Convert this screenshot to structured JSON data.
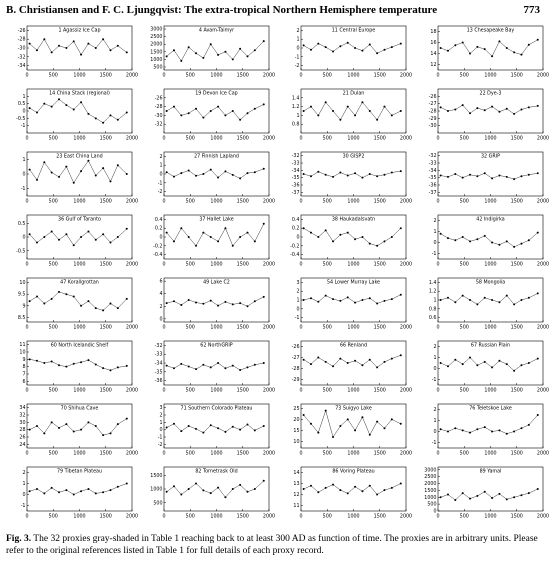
{
  "header": {
    "running_title": "B. Christiansen and F. C. Ljungqvist: The extra-tropical Northern Hemisphere temperature",
    "page_number": "773"
  },
  "figure": {
    "xlim": [
      0,
      2000
    ],
    "xticks": [
      0,
      500,
      1000,
      1500,
      2000
    ],
    "x": [
      50,
      190,
      330,
      470,
      610,
      750,
      890,
      1030,
      1170,
      1310,
      1450,
      1590,
      1730,
      1900
    ],
    "panels": [
      {
        "title": "1 Agassiz Ice Cap",
        "ylim": [
          -35,
          -25
        ],
        "yticks": [
          -26,
          -28,
          -30,
          -32,
          -34
        ],
        "values": [
          -29,
          -30.5,
          -28,
          -31,
          -29.5,
          -30,
          -28.5,
          -31.5,
          -29,
          -30,
          -28,
          -30.5,
          -29.5,
          -31
        ]
      },
      {
        "title": "4 Avam-Taimyr",
        "ylim": [
          300,
          3200
        ],
        "yticks": [
          500,
          1000,
          1500,
          2000,
          2500,
          3000
        ],
        "values": [
          1200,
          1600,
          900,
          1800,
          1400,
          1100,
          2000,
          1300,
          1500,
          1000,
          1700,
          1200,
          1600,
          2200
        ]
      },
      {
        "title": "11 Central Europe",
        "ylim": [
          -2.5,
          2.5
        ],
        "yticks": [
          -2,
          -1,
          0,
          1,
          2
        ],
        "values": [
          0.3,
          -0.2,
          0.5,
          0.1,
          -0.4,
          0.2,
          0.6,
          0,
          -0.3,
          0.4,
          -0.6,
          -0.2,
          0.1,
          0.5
        ]
      },
      {
        "title": "13 Chesapeake Bay",
        "ylim": [
          11,
          19
        ],
        "yticks": [
          12,
          14,
          16,
          18
        ],
        "values": [
          15,
          14.5,
          15.5,
          16,
          14,
          15.2,
          14.8,
          13.5,
          16.2,
          15,
          14.2,
          13.8,
          15.6,
          16.5
        ]
      },
      {
        "title": "14 China Stack (regional)",
        "ylim": [
          -1.5,
          1.5
        ],
        "yticks": [
          -1,
          -0.5,
          0,
          0.5,
          1
        ],
        "values": [
          0.2,
          -0.1,
          0.5,
          0.3,
          0.8,
          0.4,
          0.1,
          0.6,
          -0.2,
          -0.5,
          -0.8,
          -0.3,
          -0.6,
          -0.1
        ]
      },
      {
        "title": "19 Devon Ice Cap",
        "ylim": [
          -34,
          -24
        ],
        "yticks": [
          -26,
          -28,
          -30,
          -32
        ],
        "values": [
          -29,
          -28,
          -30,
          -29.5,
          -28.5,
          -30.5,
          -29,
          -28,
          -30,
          -29,
          -31,
          -29.5,
          -28.5,
          -27.5
        ]
      },
      {
        "title": "21 Dulan",
        "ylim": [
          0.6,
          1.6
        ],
        "yticks": [
          0.8,
          1,
          1.2,
          1.4
        ],
        "values": [
          1.1,
          1.2,
          1,
          1.3,
          1.1,
          0.9,
          1.2,
          1,
          1.3,
          1.1,
          0.9,
          1.2,
          1,
          1.1
        ]
      },
      {
        "title": "22 Dye-3",
        "ylim": [
          -31,
          -25
        ],
        "yticks": [
          -26,
          -27,
          -28,
          -29,
          -30
        ],
        "values": [
          -27.5,
          -28,
          -27.8,
          -27.2,
          -28.3,
          -27.6,
          -27.9,
          -27.4,
          -28.1,
          -27.7,
          -28.4,
          -27.8,
          -27.5,
          -27.3
        ]
      },
      {
        "title": "23 East China Land",
        "ylim": [
          -1.5,
          1.5
        ],
        "yticks": [
          -1,
          0,
          1
        ],
        "values": [
          0.3,
          -0.4,
          0.8,
          0.1,
          -0.2,
          0.5,
          -0.6,
          0.2,
          0.9,
          -0.1,
          0.4,
          -0.5,
          0.6,
          0
        ]
      },
      {
        "title": "27 Finnish Lapland",
        "ylim": [
          -2.5,
          2.5
        ],
        "yticks": [
          -2,
          -1,
          0,
          1,
          2
        ],
        "values": [
          0.2,
          -0.3,
          0.1,
          0.4,
          -0.2,
          0,
          0.5,
          -0.4,
          0.3,
          -0.1,
          -0.5,
          0.1,
          0.2,
          0.6
        ]
      },
      {
        "title": "30 GISP2",
        "ylim": [
          -37.5,
          -31.5
        ],
        "yticks": [
          -32,
          -33,
          -34,
          -35,
          -36,
          -37
        ],
        "values": [
          -34.5,
          -34.8,
          -34.2,
          -34.6,
          -34.9,
          -34.3,
          -34.7,
          -34.4,
          -35,
          -34.5,
          -34.8,
          -34.6,
          -34.3,
          -34.1
        ]
      },
      {
        "title": "32 GRIP",
        "ylim": [
          -37.5,
          -31.5
        ],
        "yticks": [
          -32,
          -33,
          -34,
          -35,
          -36,
          -37
        ],
        "values": [
          -34.7,
          -34.9,
          -34.5,
          -35,
          -34.6,
          -34.8,
          -34.4,
          -35.1,
          -34.7,
          -34.9,
          -35.2,
          -34.8,
          -34.6,
          -34.4
        ]
      },
      {
        "title": "36 Gulf of Taranto",
        "ylim": [
          -0.8,
          0.8
        ],
        "yticks": [
          -0.5,
          0,
          0.5
        ],
        "values": [
          0.1,
          -0.2,
          0,
          0.2,
          -0.1,
          0.1,
          -0.3,
          0,
          0.2,
          -0.1,
          0.1,
          -0.2,
          0,
          0.3
        ]
      },
      {
        "title": "37 Hallet Lake",
        "ylim": [
          -0.5,
          0.5
        ],
        "yticks": [
          -0.4,
          -0.2,
          0,
          0.2,
          0.4
        ],
        "values": [
          0.1,
          -0.1,
          0.2,
          0,
          -0.2,
          0.1,
          0,
          -0.1,
          0.2,
          -0.2,
          0,
          0.1,
          -0.1,
          0.3
        ]
      },
      {
        "title": "38 Haukadalsvatn",
        "ylim": [
          -0.5,
          0.5
        ],
        "yticks": [
          -0.4,
          -0.2,
          0,
          0.2,
          0.4
        ],
        "values": [
          0.2,
          0.1,
          0,
          0.15,
          -0.1,
          0.05,
          0.1,
          -0.05,
          0,
          -0.15,
          -0.2,
          -0.1,
          0,
          0.2
        ]
      },
      {
        "title": "42 Indigirka",
        "ylim": [
          -1.5,
          2.5
        ],
        "yticks": [
          -1,
          0,
          1,
          2
        ],
        "values": [
          0.8,
          0.4,
          0.2,
          0.5,
          0.1,
          0.3,
          0.6,
          0,
          -0.2,
          0.1,
          -0.4,
          -0.1,
          0.2,
          0.9
        ]
      },
      {
        "title": "47 Korallgrottan",
        "ylim": [
          8.3,
          10.2
        ],
        "yticks": [
          8.5,
          9,
          9.5,
          10
        ],
        "values": [
          9.2,
          9.4,
          9.1,
          9.3,
          9.6,
          9.5,
          9.4,
          9,
          9.2,
          8.9,
          8.8,
          9.1,
          8.9,
          9.3
        ]
      },
      {
        "title": "49 Lake C2",
        "ylim": [
          -0.5,
          6.5
        ],
        "yticks": [
          0,
          2,
          4,
          6
        ],
        "values": [
          2.5,
          2.8,
          2.2,
          3,
          2.6,
          2.4,
          2.9,
          2.1,
          2.7,
          2.3,
          2.5,
          2,
          2.8,
          3.5
        ]
      },
      {
        "title": "54 Lower Murray Lake",
        "ylim": [
          -1.5,
          3.5
        ],
        "yticks": [
          -1,
          0,
          1,
          2,
          3
        ],
        "values": [
          1,
          1.2,
          0.8,
          1.5,
          1.1,
          0.9,
          1.3,
          0.7,
          1,
          1.2,
          0.6,
          0.9,
          1.1,
          1.6
        ]
      },
      {
        "title": "58 Mongolia",
        "ylim": [
          0.5,
          1.5
        ],
        "yticks": [
          0.6,
          0.8,
          1,
          1.2,
          1.4
        ],
        "values": [
          1,
          1.05,
          0.95,
          1.1,
          1,
          0.9,
          1.05,
          1,
          0.95,
          1.1,
          0.9,
          1,
          1.05,
          1.15
        ]
      },
      {
        "title": "60 North Icelandic Shelf",
        "ylim": [
          5.5,
          11.5
        ],
        "yticks": [
          6,
          7,
          8,
          9,
          10,
          11
        ],
        "values": [
          9,
          8.8,
          8.5,
          8.7,
          8.2,
          8,
          8.4,
          8.6,
          8.9,
          8.3,
          7.8,
          7.5,
          7.9,
          8.1
        ]
      },
      {
        "title": "62 NorthGRIP",
        "ylim": [
          -36.5,
          -31.5
        ],
        "yticks": [
          -32,
          -33,
          -34,
          -35,
          -36
        ],
        "values": [
          -34.3,
          -34.6,
          -34.1,
          -34.4,
          -34.7,
          -34.2,
          -34.5,
          -34,
          -34.6,
          -34.3,
          -34.8,
          -34.5,
          -34.2,
          -34
        ]
      },
      {
        "title": "66 Renland",
        "ylim": [
          -29.5,
          -25.5
        ],
        "yticks": [
          -26,
          -27,
          -28,
          -29
        ],
        "values": [
          -27.2,
          -27.6,
          -27,
          -27.4,
          -27.8,
          -27.1,
          -27.5,
          -27.3,
          -27.7,
          -27.2,
          -27.9,
          -27.4,
          -27.1,
          -26.8
        ]
      },
      {
        "title": "67 Russian Plain",
        "ylim": [
          -1.5,
          2.5
        ],
        "yticks": [
          -1,
          0,
          1,
          2
        ],
        "values": [
          0.5,
          0.2,
          0.8,
          0.4,
          1,
          0.3,
          0.6,
          0.1,
          0.7,
          0.4,
          -0.2,
          0.3,
          0.5,
          0.9
        ]
      },
      {
        "title": "70 Shihua Cave",
        "ylim": [
          23,
          35
        ],
        "yticks": [
          24,
          26,
          28,
          30,
          32,
          34
        ],
        "values": [
          28,
          29,
          27,
          30,
          28.5,
          29.5,
          27.5,
          28,
          30,
          29,
          26.5,
          27,
          29.5,
          31
        ]
      },
      {
        "title": "71 Southern Colorado Plateau",
        "ylim": [
          -2.5,
          3.5
        ],
        "yticks": [
          -2,
          -1,
          0,
          1,
          2,
          3
        ],
        "values": [
          0.3,
          0.8,
          -0.2,
          0.5,
          0.1,
          -0.4,
          0.6,
          0.2,
          -0.3,
          0.4,
          0,
          0.7,
          -0.1,
          0.5
        ]
      },
      {
        "title": "73 Suigyo Lake",
        "ylim": [
          7,
          27
        ],
        "yticks": [
          10,
          15,
          20,
          25
        ],
        "values": [
          22,
          18,
          14,
          24,
          12,
          17,
          20,
          15,
          21,
          13,
          19,
          16,
          20,
          18
        ]
      },
      {
        "title": "76 Teletskoe Lake",
        "ylim": [
          -1.5,
          2.5
        ],
        "yticks": [
          -1,
          0,
          1,
          2
        ],
        "values": [
          0.2,
          0,
          0.3,
          0.1,
          -0.1,
          0.2,
          0.4,
          0,
          0.1,
          -0.2,
          0,
          0.3,
          0.6,
          1.5
        ]
      },
      {
        "title": "79 Tibetan Plateau",
        "ylim": [
          -1.5,
          2.5
        ],
        "yticks": [
          -1,
          0,
          1,
          2
        ],
        "values": [
          0.3,
          0.5,
          0.1,
          0.6,
          0.2,
          0.4,
          0,
          0.3,
          0.5,
          0.1,
          0.2,
          0.4,
          0.7,
          1
        ]
      },
      {
        "title": "82 Tornetrask Old",
        "ylim": [
          200,
          1800
        ],
        "yticks": [
          500,
          1000,
          1500
        ],
        "values": [
          900,
          1100,
          800,
          1000,
          1200,
          950,
          850,
          1050,
          700,
          1000,
          1150,
          900,
          1000,
          1300
        ]
      },
      {
        "title": "86 Voring Plateau",
        "ylim": [
          10.5,
          14.5
        ],
        "yticks": [
          11,
          12,
          13,
          14
        ],
        "values": [
          12.5,
          12.8,
          12.2,
          12.6,
          12.9,
          12.4,
          12.1,
          12.7,
          12.3,
          12.8,
          12,
          12.4,
          12.6,
          13
        ]
      },
      {
        "title": "89 Yamal",
        "ylim": [
          0,
          3200
        ],
        "yticks": [
          0,
          500,
          1000,
          1500,
          2000,
          2500,
          3000
        ],
        "values": [
          1000,
          1200,
          800,
          1300,
          900,
          1100,
          1400,
          950,
          1250,
          850,
          1000,
          1150,
          1300,
          1600
        ]
      }
    ]
  },
  "caption": {
    "label": "Fig. 3.",
    "text": "The 32 proxies gray-shaded in Table 1 reaching back to at least 300 AD as function of time. The proxies are in arbitrary units. Please refer to the original references listed in Table 1 for full details of each proxy record."
  }
}
